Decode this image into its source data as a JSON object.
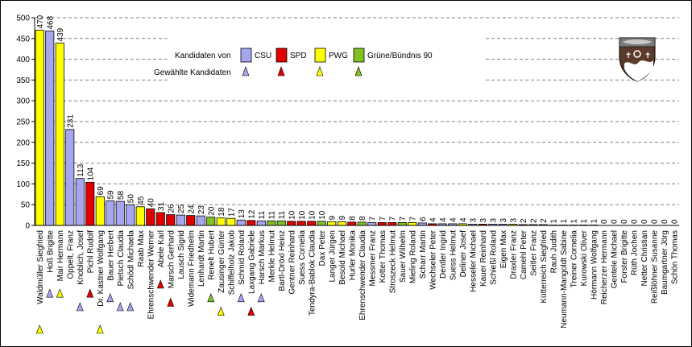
{
  "chart_data": {
    "type": "bar",
    "ylim": [
      0,
      500
    ],
    "yticks": [
      0,
      50,
      100,
      150,
      200,
      250,
      300,
      350,
      400,
      450,
      500
    ],
    "grid": true,
    "legend_position": "top-right",
    "party_colors": {
      "CSU": "#a6a6ee",
      "SPD": "#e00000",
      "PWG": "#ffff00",
      "Grüne/Bündnis 90": "#80c020"
    },
    "legend": {
      "label_parties": "Kandidaten von",
      "label_elected": "Gewählte Kandidaten",
      "parties": [
        "CSU",
        "SPD",
        "PWG",
        "Grüne/Bündnis 90"
      ]
    },
    "categories": [
      "Waldmüller Siegfried",
      "Hoß Brigitte",
      "Mair Hermann",
      "Oppelt, Franz",
      "Knoblich, Josef",
      "Pichl Rudolf",
      "Dr. Kastner Wolfgang",
      "Bauer Herbert",
      "Pietsch Claudia",
      "Schödl Michaela",
      "Raab Max",
      "Ehrenschwender Werner",
      "Abele Karl",
      "Marsch Gerhard",
      "Lausch Sigrid",
      "Widemann Friedhelm",
      "Lenhardt Martin",
      "Renelt Hubert",
      "Zausinger Günter",
      "Schiffelholz Jakob",
      "Schmid Roland",
      "Laxgang Gabriele",
      "Harsch Markus",
      "Merkle Helmut",
      "Bartl-Dröxl Heinz",
      "Gentner Reinhard",
      "Suess Cornelia",
      "Tendyra-Bablok Claudia",
      "Dax Peter",
      "Langer Jürgen",
      "Besold Michael",
      "Hurler Monika",
      "Ehrenschwender Claudia",
      "Messmer Franz",
      "Kotter Thomas",
      "Stroszeck Helmut",
      "Sauer Wilhelm",
      "Mieling Roland",
      "Scharr Martin",
      "Wechseler Peter",
      "Dentler Ingrid",
      "Suess Helmut",
      "Deliner Josef",
      "Hesseler Michael",
      "Kauer Reinhard",
      "Schießl Roland",
      "Eigen Max",
      "Draxler Franz",
      "Camehl Peter",
      "Seitler Franz",
      "Kütterreich Siegfried",
      "Rauh Judith",
      "Neumann-Mangoldt Sabine",
      "Treiner Cornelia",
      "Kurowski Oliver",
      "Hörmann Wolfgang",
      "Reicherzer Hermann",
      "Gentele Michael",
      "Forster Brigitte",
      "Rüth Jochen",
      "Netter Christian",
      "Reißlöhner Susanne",
      "Baumgartner Jörg",
      "Schön Thomas"
    ],
    "values": [
      470,
      468,
      439,
      231,
      113,
      104,
      69,
      59,
      58,
      50,
      45,
      40,
      31,
      26,
      25,
      24,
      23,
      20,
      18,
      17,
      13,
      12,
      11,
      11,
      11,
      10,
      10,
      10,
      10,
      9,
      9,
      8,
      8,
      7,
      7,
      7,
      7,
      7,
      6,
      4,
      4,
      4,
      4,
      3,
      3,
      3,
      3,
      3,
      2,
      2,
      2,
      1,
      1,
      1,
      1,
      1,
      0,
      0,
      0,
      0,
      0,
      0,
      0,
      0
    ],
    "party": [
      "PWG",
      "CSU",
      "PWG",
      "CSU",
      "CSU",
      "SPD",
      "PWG",
      "CSU",
      "CSU",
      "CSU",
      "PWG",
      "SPD",
      "SPD",
      "SPD",
      "CSU",
      "SPD",
      "CSU",
      "Grüne/Bündnis 90",
      "PWG",
      "PWG",
      "CSU",
      "SPD",
      "CSU",
      "Grüne/Bündnis 90",
      "Grüne/Bündnis 90",
      "SPD",
      "SPD",
      "SPD",
      "Grüne/Bündnis 90",
      "PWG",
      "PWG",
      "SPD",
      "Grüne/Bündnis 90",
      "CSU",
      "SPD",
      "SPD",
      "Grüne/Bündnis 90",
      "PWG",
      "CSU",
      "SPD",
      "CSU",
      "CSU",
      "PWG",
      "CSU",
      "SPD",
      "CSU",
      "CSU",
      "PWG",
      "SPD",
      "CSU",
      "PWG",
      "SPD",
      "PWG",
      "CSU",
      "SPD",
      "SPD",
      "CSU",
      "PWG",
      "SPD",
      "CSU",
      "PWG",
      "Grüne/Bündnis 90",
      "CSU",
      "SPD"
    ],
    "elected": [
      true,
      true,
      true,
      false,
      true,
      true,
      true,
      true,
      true,
      true,
      false,
      false,
      true,
      true,
      false,
      false,
      false,
      true,
      true,
      false,
      true,
      true,
      true,
      false,
      false,
      false,
      false,
      false,
      false,
      false,
      false,
      false,
      false,
      false,
      false,
      false,
      false,
      false,
      false,
      false,
      false,
      false,
      false,
      false,
      false,
      false,
      false,
      false,
      false,
      false,
      false,
      false,
      false,
      false,
      false,
      false,
      false,
      false,
      false,
      false,
      false,
      false,
      false,
      false
    ]
  }
}
